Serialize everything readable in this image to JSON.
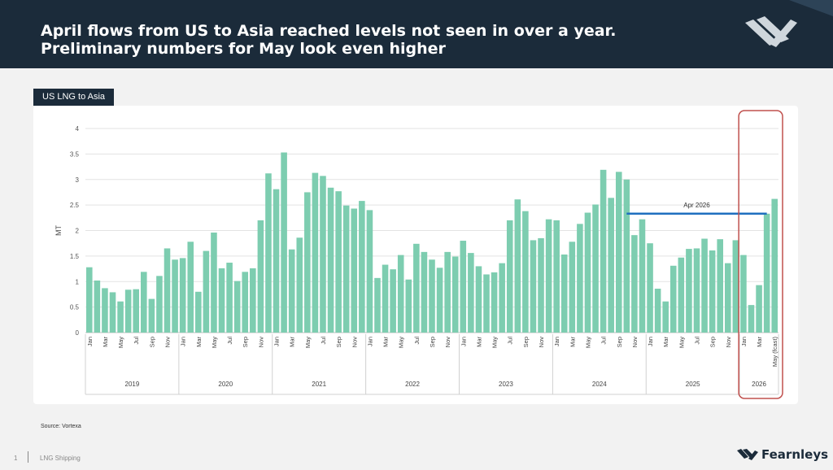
{
  "header": {
    "title": "April flows from US to Asia reached levels not seen in over a year. Preliminary numbers for May look even higher"
  },
  "tab_label": "US LNG to Asia",
  "source": "Source: Vortexa",
  "footer": {
    "page": "1",
    "section": "LNG Shipping",
    "brand": "Fearnleys"
  },
  "colors": {
    "bar": "#7dcdb0",
    "header": "#1b2b3a",
    "highlight_box": "#c0504d",
    "reference_line": "#1f6fbf"
  },
  "chart_data": {
    "type": "bar",
    "ylabel": "MT",
    "ylim": [
      0,
      4
    ],
    "yticks": [
      "0",
      "0.5",
      "1",
      "1.5",
      "2",
      "2.5",
      "3",
      "3.5",
      "4"
    ],
    "grid": true,
    "categories": [
      "Jan",
      "Feb",
      "Mar",
      "Apr",
      "May",
      "Jun",
      "Jul",
      "Aug",
      "Sep",
      "Oct",
      "Nov",
      "Dec",
      "Jan",
      "Feb",
      "Mar",
      "Apr",
      "May",
      "Jun",
      "Jul",
      "Aug",
      "Sep",
      "Oct",
      "Nov",
      "Dec",
      "Jan",
      "Feb",
      "Mar",
      "Apr",
      "May",
      "Jun",
      "Jul",
      "Aug",
      "Sep",
      "Oct",
      "Nov",
      "Dec",
      "Jan",
      "Feb",
      "Mar",
      "Apr",
      "May",
      "Jun",
      "Jul",
      "Aug",
      "Sep",
      "Oct",
      "Nov",
      "Dec",
      "Jan",
      "Feb",
      "Mar",
      "Apr",
      "May",
      "Jun",
      "Jul",
      "Aug",
      "Sep",
      "Oct",
      "Nov",
      "Dec",
      "Jan",
      "Feb",
      "Mar",
      "Apr",
      "May",
      "Jun",
      "Jul",
      "Aug",
      "Sep",
      "Oct",
      "Nov",
      "Dec",
      "Jan",
      "Feb",
      "Mar",
      "Apr",
      "May",
      "Jun",
      "Jul",
      "Aug",
      "Sep",
      "Oct",
      "Nov",
      "Dec",
      "Jan",
      "Feb",
      "Mar",
      "Apr",
      "May (fcast)"
    ],
    "visible_tick_labels": [
      "Jan",
      "",
      "Mar",
      "",
      "May",
      "",
      "Jul",
      "",
      "Sep",
      "",
      "Nov",
      "",
      "Jan",
      "",
      "Mar",
      "",
      "May",
      "",
      "Jul",
      "",
      "Sep",
      "",
      "Nov",
      "",
      "Jan",
      "",
      "Mar",
      "",
      "May",
      "",
      "Jul",
      "",
      "Sep",
      "",
      "Nov",
      "",
      "Jan",
      "",
      "Mar",
      "",
      "May",
      "",
      "Jul",
      "",
      "Sep",
      "",
      "Nov",
      "",
      "Jan",
      "",
      "Mar",
      "",
      "May",
      "",
      "Jul",
      "",
      "Sep",
      "",
      "Nov",
      "",
      "Jan",
      "",
      "Mar",
      "",
      "May",
      "",
      "Jul",
      "",
      "Sep",
      "",
      "Nov",
      "",
      "Jan",
      "",
      "Mar",
      "",
      "May",
      "",
      "Jul",
      "",
      "Sep",
      "",
      "Nov",
      "",
      "Jan",
      "",
      "Mar",
      "",
      "May (fcast)"
    ],
    "values": [
      1.28,
      1.02,
      0.87,
      0.79,
      0.61,
      0.84,
      0.85,
      1.19,
      0.66,
      1.11,
      1.65,
      1.43,
      1.46,
      1.78,
      0.8,
      1.6,
      1.96,
      1.26,
      1.37,
      1.01,
      1.19,
      1.26,
      2.2,
      3.12,
      2.81,
      3.53,
      1.63,
      1.86,
      2.75,
      3.13,
      3.07,
      2.84,
      2.77,
      2.49,
      2.43,
      2.58,
      2.4,
      1.07,
      1.33,
      1.24,
      1.52,
      1.04,
      1.74,
      1.58,
      1.43,
      1.27,
      1.58,
      1.49,
      1.8,
      1.56,
      1.3,
      1.14,
      1.18,
      1.36,
      2.2,
      2.61,
      2.38,
      1.81,
      1.85,
      2.22,
      2.2,
      1.53,
      1.78,
      2.13,
      2.35,
      2.51,
      3.19,
      2.64,
      3.15,
      3.0,
      1.91,
      2.22,
      1.75,
      0.86,
      0.61,
      1.31,
      1.47,
      1.64,
      1.65,
      1.84,
      1.61,
      1.83,
      1.36,
      1.81,
      1.52,
      0.54,
      0.93,
      2.33,
      2.62
    ],
    "year_groups": [
      {
        "label": "2019",
        "months": 12
      },
      {
        "label": "2020",
        "months": 12
      },
      {
        "label": "2021",
        "months": 12
      },
      {
        "label": "2022",
        "months": 12
      },
      {
        "label": "2023",
        "months": 12
      },
      {
        "label": "2024",
        "months": 12
      },
      {
        "label": "2025",
        "months": 12
      },
      {
        "label": "2026",
        "months": 5
      }
    ],
    "annotation": {
      "label": "Apr 2026",
      "value": 2.33
    },
    "highlight_year": "2026"
  }
}
